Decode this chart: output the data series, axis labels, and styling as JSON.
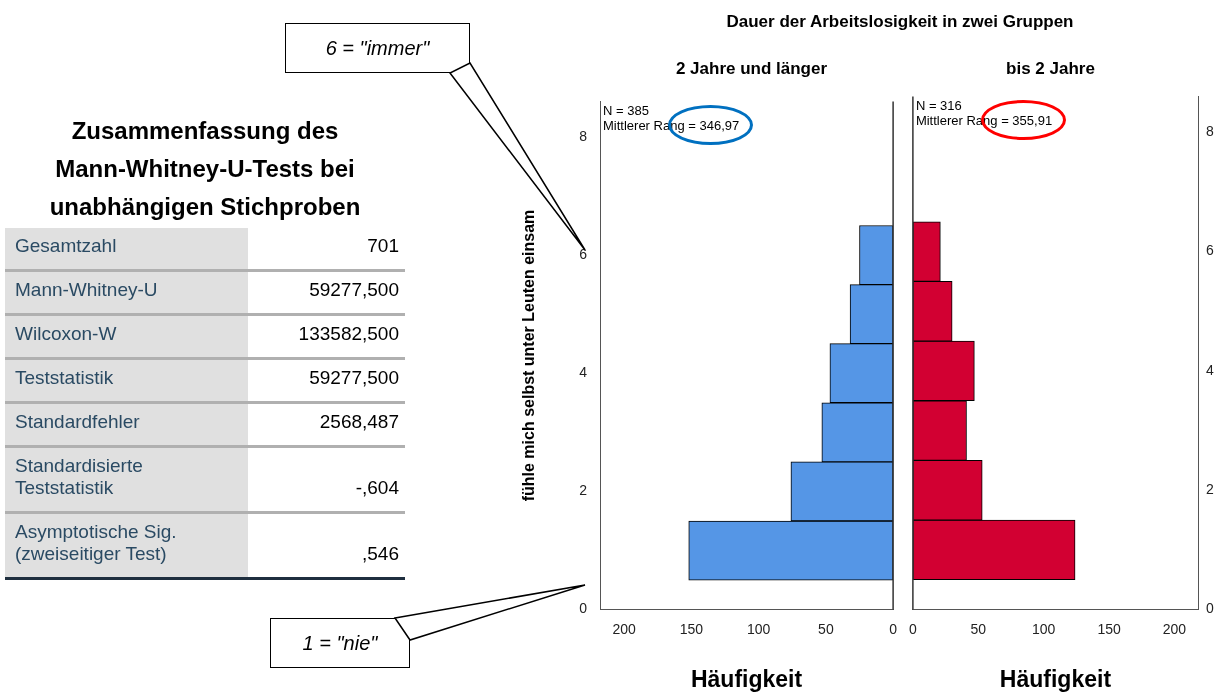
{
  "chart_data": [
    {
      "type": "other",
      "title": "Zusammenfassung des Mann-Whitney-U-Tests bei unabhängigen Stichproben",
      "annotations": [
        "Gesamtzahl",
        "701",
        "Mann-Whitney-U",
        "59277,500",
        "Wilcoxon-W",
        "133582,500",
        "Teststatistik",
        "59277,500",
        "Standardfehler",
        "2568,487",
        "Standardisierte Teststatistik",
        "-,604",
        "Asymptotische Sig. (zweiseitiger Test)",
        ",546"
      ]
    },
    {
      "type": "bar",
      "orientation": "horizontal",
      "title": "Dauer der Arbeitslosigkeit in zwei Gruppen",
      "subtitle": "2 Jahre und länger",
      "xlabel": "Häufigkeit",
      "ylabel": "fühle mich selbst unter Leuten einsam",
      "x": [
        1,
        2,
        3,
        4,
        5,
        6
      ],
      "values": [
        152,
        76,
        53,
        47,
        32,
        25
      ],
      "color": "#5596e6",
      "xlim": [
        218,
        0
      ],
      "xticks": [
        200,
        150,
        100,
        50,
        0
      ],
      "ylim": [
        0,
        8.6
      ],
      "yticks": [
        0,
        2,
        4,
        6,
        8
      ],
      "annotations": [
        "N = 385",
        "Mittlerer Rang = 346,97",
        "6 = \"immer\"",
        "1 = \"nie\""
      ]
    },
    {
      "type": "bar",
      "orientation": "horizontal",
      "subtitle": "bis 2 Jahre",
      "xlabel": "Häufigkeit",
      "x": [
        1,
        2,
        3,
        4,
        5,
        6
      ],
      "values": [
        124,
        53,
        41,
        47,
        30,
        21
      ],
      "color": "#d20032",
      "xlim": [
        0,
        218
      ],
      "xticks": [
        0,
        50,
        100,
        150,
        200
      ],
      "ylim": [
        0,
        8.6
      ],
      "yticks": [
        0,
        2,
        4,
        6,
        8
      ],
      "annotations": [
        "N = 316",
        "Mittlerer Rang = 355,91"
      ]
    }
  ]
}
